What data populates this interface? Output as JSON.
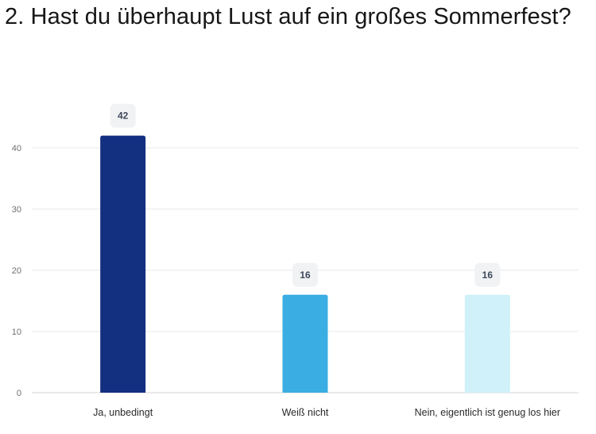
{
  "question": {
    "title": "2. Hast du überhaupt Lust auf ein großes Sommerfest?"
  },
  "chart_data": {
    "type": "bar",
    "title": "2. Hast du überhaupt Lust auf ein großes Sommerfest?",
    "xlabel": "",
    "ylabel": "",
    "categories": [
      "Ja, unbedingt",
      "Weiß nicht",
      "Nein, eigentlich ist genug los hier"
    ],
    "values": [
      42,
      16,
      16
    ],
    "data_labels": [
      "42",
      "16",
      "16"
    ],
    "colors": [
      "#122F80",
      "#3AAEE3",
      "#D0F1F9"
    ],
    "yticks": [
      0,
      10,
      20,
      30,
      40
    ],
    "ylim": [
      0,
      50
    ],
    "grid": true,
    "legend": "none"
  }
}
